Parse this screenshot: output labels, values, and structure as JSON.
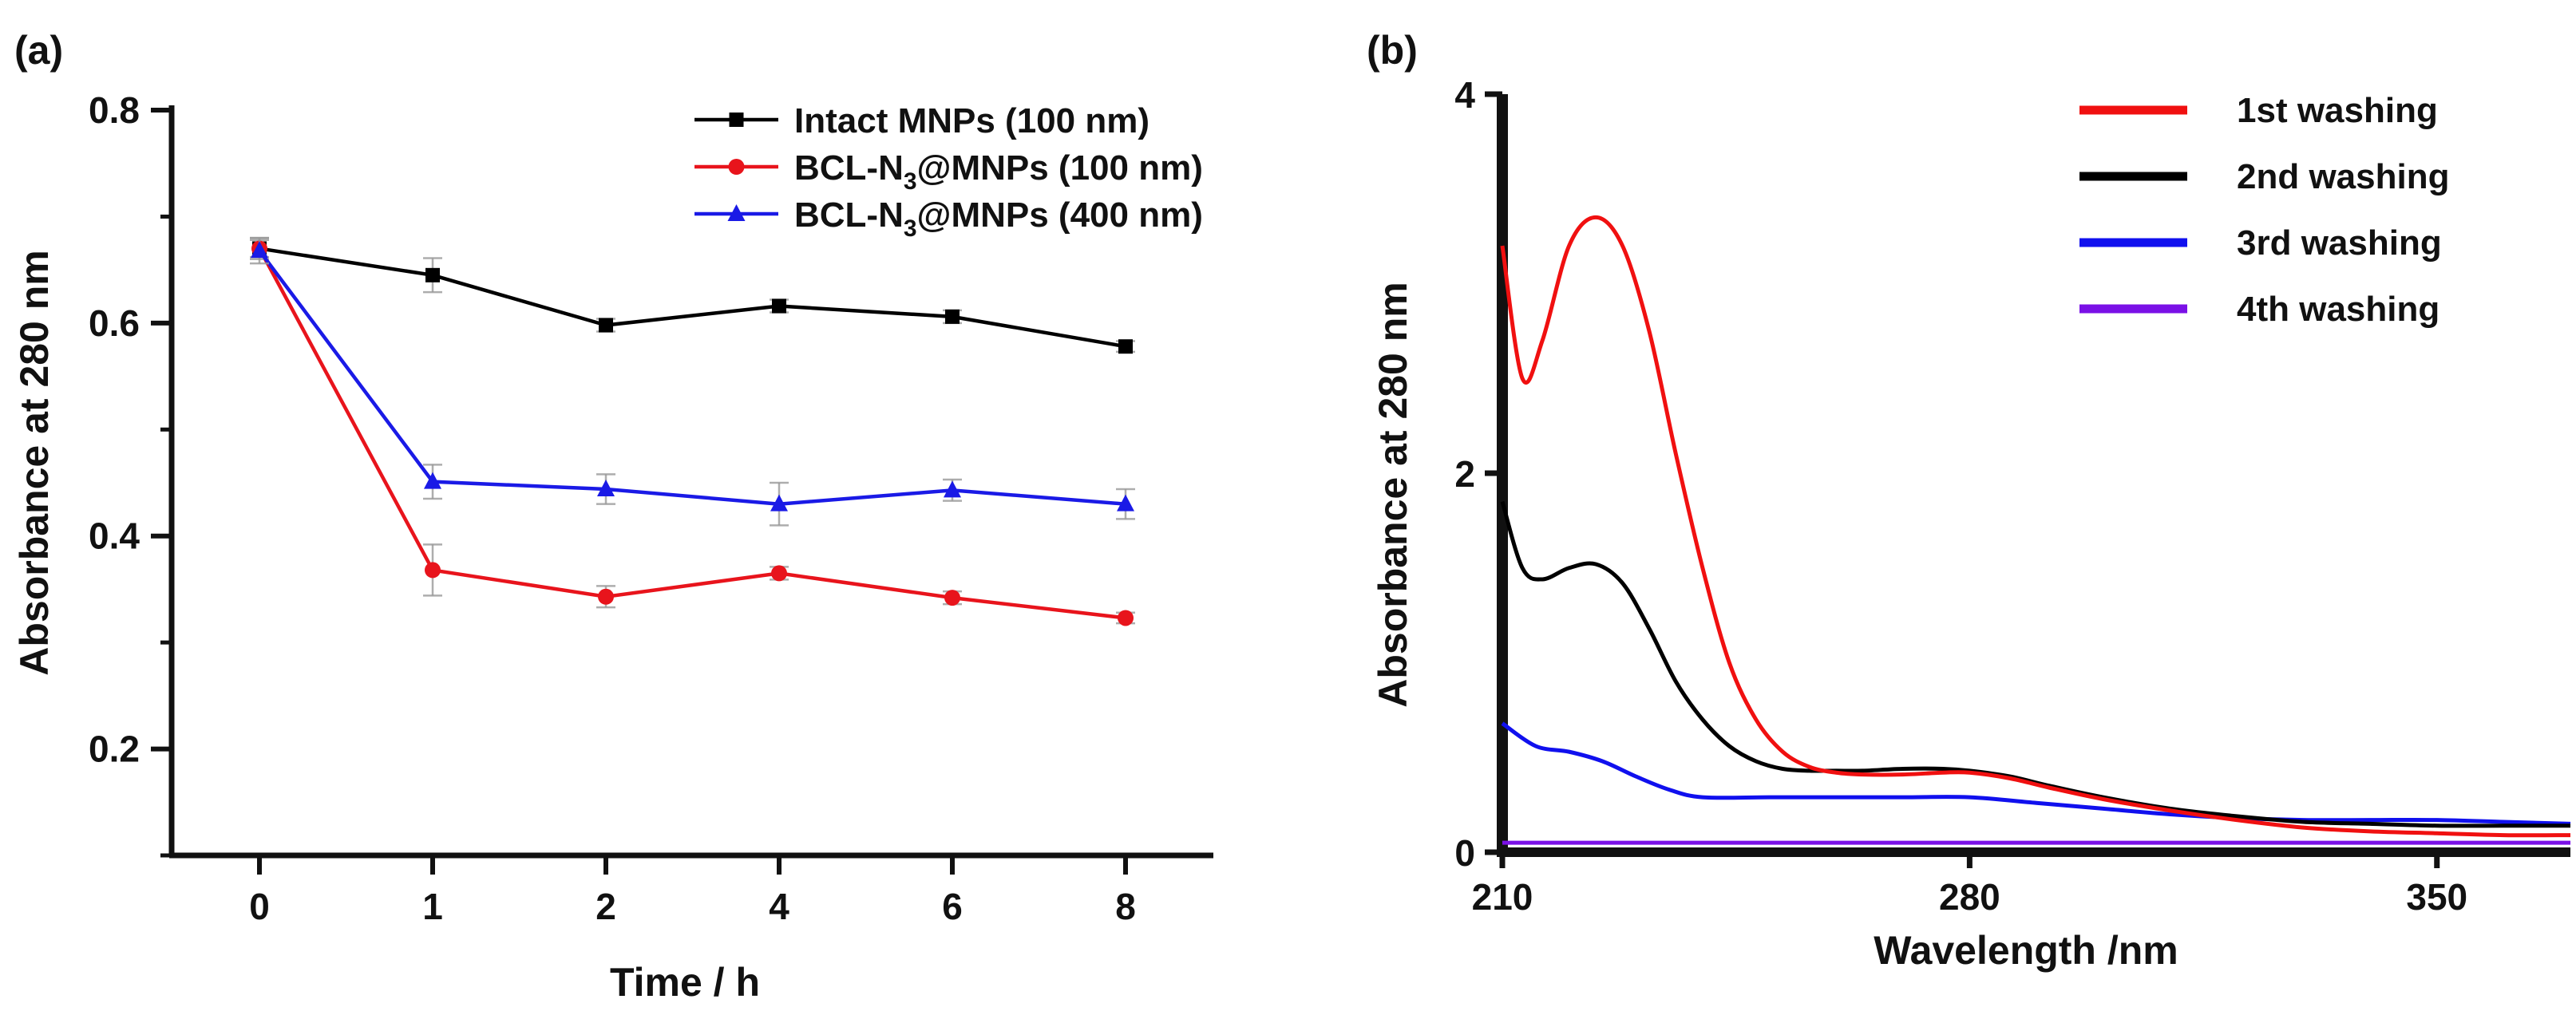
{
  "chart_data": [
    {
      "type": "line",
      "panel_label": "(a)",
      "xlabel": "Time / h",
      "ylabel": "Absorbance at 280 nm",
      "categories": [
        "0",
        "1",
        "2",
        "4",
        "6",
        "8"
      ],
      "ylim": [
        0.1,
        0.8
      ],
      "yticks": [
        "0.2",
        "0.4",
        "0.6",
        "0.8"
      ],
      "legend_position": "top-right",
      "series": [
        {
          "name": "Intact MNPs (100 nm)",
          "color": "#000000",
          "marker": "square",
          "values": [
            0.67,
            0.645,
            0.598,
            0.616,
            0.606,
            0.578
          ],
          "errors": [
            0.008,
            0.016,
            0.006,
            0.006,
            0.006,
            0.005
          ]
        },
        {
          "name": "BCL-N3@MNPs (100 nm)",
          "name_main": "BCL-N",
          "name_sub": "3",
          "name_tail": "@MNPs (100 nm)",
          "color": "#e8141c",
          "marker": "circle",
          "values": [
            0.67,
            0.368,
            0.343,
            0.365,
            0.342,
            0.323
          ],
          "errors": [
            0.01,
            0.024,
            0.01,
            0.006,
            0.006,
            0.005
          ]
        },
        {
          "name": "BCL-N3@MNPs (400 nm)",
          "name_main": "BCL-N",
          "name_sub": "3",
          "name_tail": "@MNPs (400 nm)",
          "color": "#1a1ae6",
          "marker": "triangle",
          "values": [
            0.668,
            0.451,
            0.444,
            0.43,
            0.443,
            0.43
          ],
          "errors": [
            0.012,
            0.016,
            0.014,
            0.02,
            0.01,
            0.014
          ]
        }
      ]
    },
    {
      "type": "line",
      "panel_label": "(b)",
      "xlabel": "Wavelength /nm",
      "ylabel": "Absorbance at 280 nm",
      "xlim": [
        210,
        370
      ],
      "ylim": [
        0,
        4
      ],
      "xticks": [
        "210",
        "280",
        "350"
      ],
      "yticks": [
        "0",
        "2",
        "4"
      ],
      "legend_position": "top-right",
      "series": [
        {
          "name": "1st washing",
          "color": "#f01010",
          "x": [
            210,
            213,
            216,
            220,
            224,
            228,
            232,
            236,
            240,
            244,
            248,
            252,
            256,
            260,
            264,
            270,
            276,
            280,
            286,
            292,
            300,
            310,
            320,
            330,
            340,
            350,
            360,
            370
          ],
          "y": [
            3.2,
            2.5,
            2.7,
            3.2,
            3.35,
            3.2,
            2.75,
            2.1,
            1.5,
            1.0,
            0.7,
            0.53,
            0.45,
            0.42,
            0.41,
            0.41,
            0.42,
            0.42,
            0.39,
            0.34,
            0.28,
            0.22,
            0.17,
            0.13,
            0.11,
            0.1,
            0.09,
            0.09
          ]
        },
        {
          "name": "2nd washing",
          "color": "#000000",
          "x": [
            210,
            213,
            216,
            220,
            224,
            228,
            232,
            236,
            240,
            244,
            248,
            252,
            256,
            260,
            264,
            270,
            276,
            280,
            286,
            292,
            300,
            310,
            320,
            330,
            340,
            350,
            360,
            370
          ],
          "y": [
            1.85,
            1.5,
            1.44,
            1.5,
            1.52,
            1.42,
            1.18,
            0.9,
            0.7,
            0.56,
            0.48,
            0.44,
            0.43,
            0.43,
            0.43,
            0.44,
            0.44,
            0.43,
            0.4,
            0.35,
            0.29,
            0.23,
            0.19,
            0.16,
            0.15,
            0.14,
            0.14,
            0.14
          ]
        },
        {
          "name": "3rd washing",
          "color": "#1010ee",
          "x": [
            210,
            215,
            220,
            225,
            230,
            235,
            240,
            250,
            260,
            270,
            280,
            290,
            300,
            310,
            320,
            330,
            340,
            350,
            360,
            370
          ],
          "y": [
            0.68,
            0.56,
            0.53,
            0.48,
            0.4,
            0.33,
            0.29,
            0.29,
            0.29,
            0.29,
            0.29,
            0.26,
            0.23,
            0.2,
            0.18,
            0.17,
            0.17,
            0.17,
            0.16,
            0.15
          ]
        },
        {
          "name": "4th washing",
          "color": "#7a10e6",
          "x": [
            210,
            250,
            300,
            350,
            370
          ],
          "y": [
            0.05,
            0.05,
            0.05,
            0.05,
            0.05
          ]
        }
      ]
    }
  ]
}
